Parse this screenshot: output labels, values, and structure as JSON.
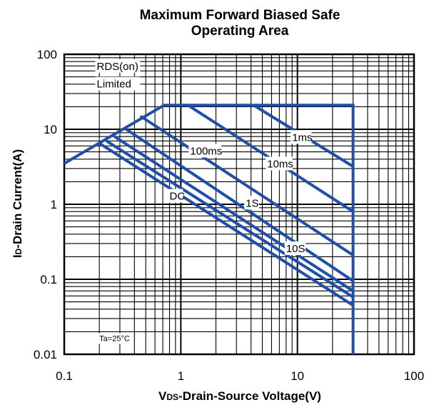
{
  "chart_data": {
    "type": "line",
    "title_line1": "Maximum Forward Biased Safe",
    "title_line2": "Operating Area",
    "xlabel_prefix": "V",
    "xlabel_sub": "DS",
    "xlabel_rest": "-Drain-Source Voltage(V)",
    "ylabel_prefix": "I",
    "ylabel_sub": "D",
    "ylabel_rest": "-Drain Current(A)",
    "x_scale": "log",
    "y_scale": "log",
    "xlim": [
      0.1,
      100
    ],
    "ylim": [
      0.01,
      100
    ],
    "x_ticks": [
      0.1,
      1,
      10,
      100
    ],
    "x_tick_labels": [
      "0.1",
      "1",
      "10",
      "100"
    ],
    "y_ticks": [
      0.01,
      0.1,
      1,
      10,
      100
    ],
    "y_tick_labels": [
      "0.01",
      "0.1",
      "1",
      "10",
      "100"
    ],
    "grid": true,
    "line_color": "#1f4fa8",
    "series": [
      {
        "x": [
          0.1,
          0.72,
          30,
          30
        ],
        "y": [
          3.5,
          21,
          21,
          0.01
        ]
      },
      {
        "x": [
          4.2,
          30
        ],
        "y": [
          21,
          3.2
        ]
      },
      {
        "x": [
          1.15,
          30
        ],
        "y": [
          21,
          0.8
        ]
      },
      {
        "x": [
          0.45,
          30
        ],
        "y": [
          15,
          0.21
        ]
      },
      {
        "x": [
          0.34,
          30
        ],
        "y": [
          10,
          0.095
        ]
      },
      {
        "x": [
          0.27,
          30
        ],
        "y": [
          8,
          0.07
        ]
      },
      {
        "x": [
          0.23,
          30
        ],
        "y": [
          7,
          0.058
        ]
      },
      {
        "x": [
          0.2,
          30
        ],
        "y": [
          6.5,
          0.045
        ]
      }
    ],
    "annotations": [
      {
        "text": "RDS(on)",
        "x": 0.19,
        "y": 62
      },
      {
        "text": "Limited",
        "x": 0.19,
        "y": 36
      },
      {
        "text": "1ms",
        "x": 9.0,
        "y": 7.0
      },
      {
        "text": "100ms",
        "x": 1.2,
        "y": 4.6
      },
      {
        "text": "10ms",
        "x": 5.5,
        "y": 3.1
      },
      {
        "text": "DC",
        "x": 0.8,
        "y": 1.15
      },
      {
        "text": "1S",
        "x": 3.6,
        "y": 0.93
      },
      {
        "text": "10S",
        "x": 8.0,
        "y": 0.23
      },
      {
        "text": "Ta=25°C",
        "x": 0.2,
        "y": 0.015
      }
    ]
  }
}
